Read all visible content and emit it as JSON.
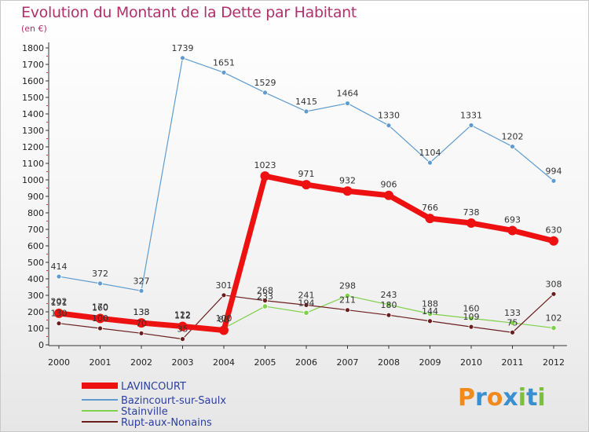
{
  "chart_data": {
    "type": "line",
    "title": "Evolution du Montant de la Dette par Habitant",
    "subtitle": "(en €)",
    "xlabel": "",
    "ylabel": "",
    "ylim": [
      0,
      1800
    ],
    "yticks": [
      "0",
      "100",
      "200",
      "300",
      "400",
      "500",
      "600",
      "700",
      "800",
      "900",
      "1000",
      "1100",
      "1200",
      "1300",
      "1400",
      "1500",
      "1600",
      "1700",
      "1800"
    ],
    "categories": [
      "2000",
      "2001",
      "2002",
      "2003",
      "2004",
      "2005",
      "2006",
      "2007",
      "2008",
      "2009",
      "2010",
      "2011",
      "2012"
    ],
    "series": [
      {
        "name": "Bazincourt-sur-Saulx",
        "color": "#5f9bcf",
        "values": [
          414,
          372,
          327,
          null,
          null,
          null,
          null,
          null,
          null,
          null,
          null,
          null,
          null
        ],
        "values_full": [
          414,
          372,
          327,
          1739,
          1651,
          1529,
          1415,
          1464,
          1330,
          1104,
          1331,
          1202,
          994
        ],
        "labels": [
          "414",
          "372",
          "327",
          "1739",
          "1651",
          "1529",
          "1415",
          "1464",
          "1330",
          "1104",
          "1331",
          "1202",
          "994"
        ]
      },
      {
        "name": "Stainville",
        "color": "#7fd04a",
        "values_full": [
          202,
          170,
          138,
          122,
          100,
          233,
          194,
          298,
          243,
          188,
          160,
          133,
          102
        ],
        "labels": [
          "202",
          "170",
          "138",
          "122",
          "100",
          "233",
          "194",
          "298",
          "243",
          "188",
          "160",
          "133",
          "102"
        ]
      },
      {
        "name": "Rupt-aux-Nonains",
        "color": "#6b1e1e",
        "values_full": [
          130,
          100,
          70,
          35,
          301,
          268,
          241,
          211,
          180,
          144,
          109,
          75,
          308
        ],
        "labels": [
          "130",
          "100",
          "70",
          "35",
          "301",
          "268",
          "241",
          "211",
          "180",
          "144",
          "109",
          "75",
          "308"
        ]
      },
      {
        "name": "LAVINCOURT",
        "color": "#ee1111",
        "values_full": [
          191,
          160,
          133,
          112,
          88,
          1023,
          971,
          932,
          906,
          766,
          738,
          693,
          630
        ],
        "labels": [
          "191",
          "160",
          "133",
          "112",
          "88",
          "1023",
          "971",
          "932",
          "906",
          "766",
          "738",
          "693",
          "630"
        ]
      }
    ],
    "legend": {
      "position": "bottom-left",
      "entries": [
        {
          "name": "LAVINCOURT",
          "color": "#ee1111"
        },
        {
          "name": "Bazincourt-sur-Saulx",
          "color": "#5f9bcf"
        },
        {
          "name": "Stainville",
          "color": "#7fd04a"
        },
        {
          "name": "Rupt-aux-Nonains",
          "color": "#6b1e1e"
        }
      ]
    }
  },
  "branding": {
    "logo_text": "Proxiti",
    "logo_letters": [
      "P",
      "r",
      "o",
      "x",
      "i",
      "t",
      "i"
    ],
    "logo_colors": [
      "#f08a1c",
      "#3a8fd0",
      "#f08a1c",
      "#3a8fd0",
      "#7bbf3a",
      "#3a8fd0",
      "#7bbf3a"
    ]
  }
}
